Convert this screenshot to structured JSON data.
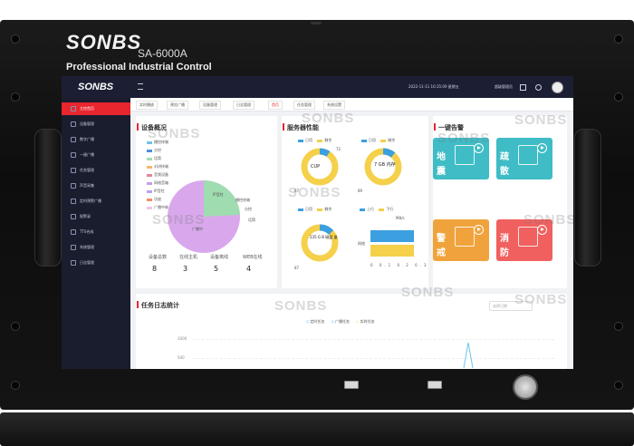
{
  "device": {
    "brand": "SONBS",
    "model": "SA-6000A",
    "tagline": "Professional Industrial Control"
  },
  "header": {
    "logo": "SONBS",
    "menu_icon": "menu-icon",
    "datetime": "2022-11-11 16:35:09 星期五",
    "admin": "超级管理员",
    "icons": [
      "fullscreen-icon",
      "settings-icon",
      "avatar-icon"
    ]
  },
  "sidebar": {
    "items": [
      {
        "label": "主控首页",
        "active": true
      },
      {
        "label": "设备管理"
      },
      {
        "label": "数字广播"
      },
      {
        "label": "一键广播"
      },
      {
        "label": "任务管理"
      },
      {
        "label": "声音采集"
      },
      {
        "label": "定时预警广播"
      },
      {
        "label": "报警录"
      },
      {
        "label": "TTS合成"
      },
      {
        "label": "系统管理"
      },
      {
        "label": "日志管理"
      }
    ]
  },
  "tabs": [
    {
      "label": "实时播放"
    },
    {
      "label": "预览广播"
    },
    {
      "label": "设备管理"
    },
    {
      "label": "日志管理"
    },
    {
      "label": "首页",
      "active": true
    },
    {
      "label": "任务管理"
    },
    {
      "label": "系统设置"
    }
  ],
  "device_overview": {
    "title": "设备概况",
    "legend": [
      "播控终端",
      "分控",
      "话筒",
      "对讲终端",
      "音频设备",
      "网络音箱",
      "IP音柱",
      "功放",
      "广播中继"
    ],
    "legend_colors": [
      "#6fc3ea",
      "#4d8fd8",
      "#9fdcb0",
      "#f4b86a",
      "#e8839a",
      "#c69ee6",
      "#b7a3f0",
      "#f28f66",
      "#f2c5e5"
    ],
    "slice_labels": [
      "IP音柱",
      "播控终端",
      "分控",
      "广播中",
      "话筒"
    ],
    "stats": [
      {
        "label": "设备总数",
        "value": "8"
      },
      {
        "label": "在线主机",
        "value": "3"
      },
      {
        "label": "设备离线",
        "value": "5"
      },
      {
        "label": "WEB在线",
        "value": "4"
      }
    ]
  },
  "server_performance": {
    "title": "服务器性能",
    "gauges": [
      {
        "legend": [
          "已用",
          "剩余"
        ],
        "center": "CUP",
        "outer_label": "72",
        "inner_label": "87"
      },
      {
        "legend": [
          "已用",
          "剩余"
        ],
        "center": "7 GB\n内存",
        "outer_label": "",
        "inner_label": "89"
      },
      {
        "legend": [
          "已用",
          "剩余"
        ],
        "center": "235 G\nB 磁盘\n量",
        "outer_label": "",
        "inner_label": "87"
      }
    ],
    "bar_panel": {
      "legend": [
        "上行",
        "下行"
      ],
      "unit": "MB/s",
      "category": "网络",
      "ticks": [
        "0",
        "0.1",
        "0.2",
        "0.3",
        "0.4",
        "0.5"
      ]
    }
  },
  "alarm": {
    "title": "一键告警",
    "tiles": [
      {
        "t1": "地",
        "t2": "震",
        "color": "#3fbcc6",
        "icon": "earthquake-icon"
      },
      {
        "t1": "疏",
        "t2": "散",
        "color": "#3fbcc6",
        "icon": "evacuation-icon"
      },
      {
        "t1": "警",
        "t2": "戒",
        "color": "#f0a33c",
        "icon": "warning-icon"
      },
      {
        "t1": "消",
        "t2": "防",
        "color": "#f0605f",
        "icon": "fire-alarm-icon"
      }
    ]
  },
  "task_log": {
    "title": "任务日志统计",
    "date_placeholder": "选择日期",
    "legend": [
      "定时任务",
      "广播任务",
      "实时任务"
    ],
    "y_ticks": [
      "1000",
      "500"
    ]
  },
  "watermark": "SONBS"
}
